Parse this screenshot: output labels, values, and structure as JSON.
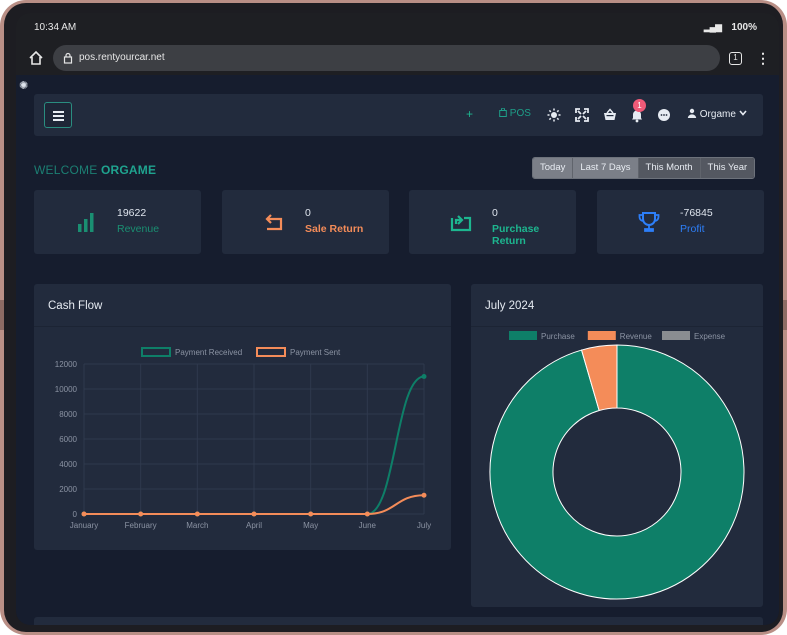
{
  "status": {
    "time": "10:34 AM",
    "battery": "100%"
  },
  "browser": {
    "url": "pos.rentyourcar.net",
    "tab_count": "1"
  },
  "nav": {
    "pos_label": "POS",
    "notification_count": "1",
    "user_name": "Orgame"
  },
  "welcome": {
    "prefix": "WELCOME",
    "name": "ORGAME"
  },
  "ranges": [
    "Today",
    "Last 7 Days",
    "This Month",
    "This Year"
  ],
  "active_range": "This Month",
  "colors": {
    "teal": "#0e7f68",
    "orange": "#f48c59",
    "gray": "#8a8d91",
    "profit_blue": "#2d7ff9"
  },
  "stats": [
    {
      "value": "19622",
      "label": "Revenue",
      "icon": "bar-chart-icon",
      "color": "#1a8f72"
    },
    {
      "value": "0",
      "label": "Sale Return",
      "icon": "return-arrow-icon",
      "color": "#f48c59"
    },
    {
      "value": "0",
      "label": "Purchase Return",
      "icon": "purchase-return-icon",
      "color": "#1db68f"
    },
    {
      "value": "-76845",
      "label": "Profit",
      "icon": "trophy-icon",
      "color": "#2d7ff9"
    }
  ],
  "cashflow": {
    "title": "Cash Flow"
  },
  "donut": {
    "title": "July 2024"
  },
  "chart_data": [
    {
      "type": "line",
      "title": "Cash Flow",
      "categories": [
        "January",
        "February",
        "March",
        "April",
        "May",
        "June",
        "July"
      ],
      "series": [
        {
          "name": "Payment Received",
          "values": [
            0,
            0,
            0,
            0,
            0,
            0,
            11000
          ],
          "color": "#0e7f68"
        },
        {
          "name": "Payment Sent",
          "values": [
            0,
            0,
            0,
            0,
            0,
            0,
            1500
          ],
          "color": "#f48c59"
        }
      ],
      "ylim": [
        0,
        12000
      ],
      "yticks": [
        0,
        2000,
        4000,
        6000,
        8000,
        10000,
        12000
      ],
      "legend": "top",
      "grid": true
    },
    {
      "type": "pie",
      "title": "July 2024",
      "labels": [
        "Purchase",
        "Revenue",
        "Expense"
      ],
      "values": [
        95.5,
        4.5,
        0
      ],
      "colors": [
        "#0e7f68",
        "#f48c59",
        "#8a8d91"
      ],
      "legend": "top"
    }
  ]
}
